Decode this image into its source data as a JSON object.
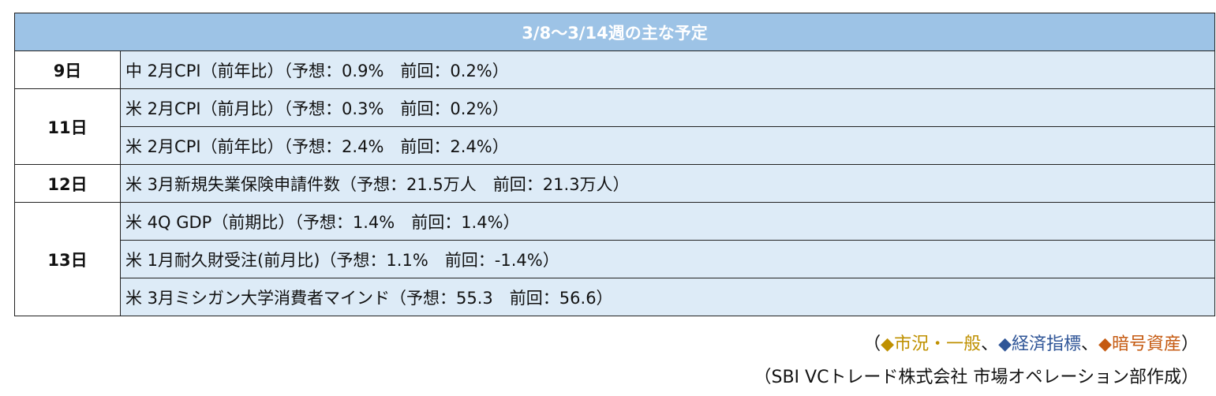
{
  "table": {
    "title": "3/8～3/14週の主な予定",
    "groups": [
      {
        "date": "9日",
        "rows": [
          "中 2月CPI（前年比）（予想：0.9%　前回：0.2%）"
        ]
      },
      {
        "date": "11日",
        "rows": [
          "米 2月CPI（前月比）（予想：0.3%　前回：0.2%）",
          "米 2月CPI（前年比）（予想：2.4%　前回：2.4%）"
        ]
      },
      {
        "date": "12日",
        "rows": [
          "米 3月新規失業保険申請件数（予想：21.5万人　前回：21.3万人）"
        ]
      },
      {
        "date": "13日",
        "rows": [
          "米 4Q GDP（前期比）（予想：1.4%　前回：1.4%）",
          "米 1月耐久財受注(前月比)（予想：1.1%　前回：-1.4%）",
          "米 3月ミシガン大学消費者マインド（予想：55.3　前回：56.6）"
        ]
      }
    ]
  },
  "legend": {
    "open": "（",
    "separator": "、",
    "close": "）",
    "items": [
      {
        "marker": "◆",
        "label": "市況・一般",
        "color": "#bf9000"
      },
      {
        "marker": "◆",
        "label": "経済指標",
        "color": "#2f5597"
      },
      {
        "marker": "◆",
        "label": "暗号資産",
        "color": "#c55a11"
      }
    ]
  },
  "source": "（SBI VCトレード株式会社 市場オペレーション部作成）"
}
